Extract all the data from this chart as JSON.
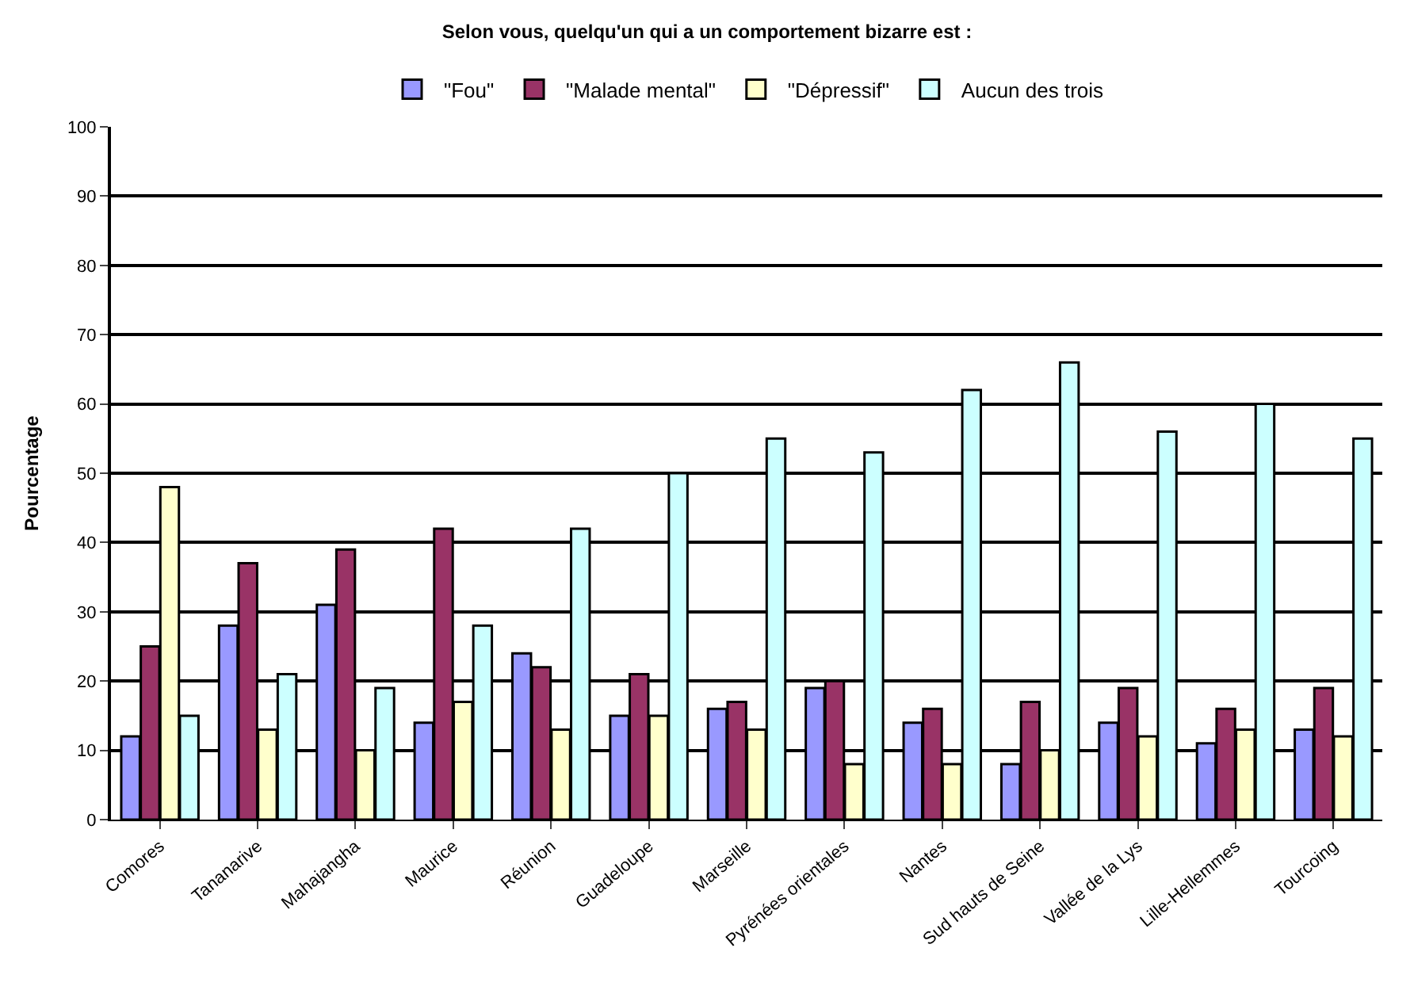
{
  "chart_data": {
    "type": "bar",
    "title": "Selon vous, quelqu'un qui a un comportement bizarre est :",
    "ylabel": "Pourcentage",
    "categories": [
      "Comores",
      "Tananarive",
      "Mahajangha",
      "Maurice",
      "Réunion",
      "Guadeloupe",
      "Marseille",
      "Pyrénées orientales",
      "Nantes",
      "Sud hauts de Seine",
      "Vallée de la Lys",
      "Lille-Hellemmes",
      "Tourcoing"
    ],
    "series": [
      {
        "name": "\"Fou\"",
        "color": "#9999ff",
        "values": [
          12,
          28,
          31,
          14,
          24,
          15,
          16,
          19,
          14,
          8,
          14,
          11,
          13
        ]
      },
      {
        "name": "\"Malade mental\"",
        "color": "#993366",
        "values": [
          25,
          37,
          39,
          42,
          22,
          21,
          17,
          20,
          16,
          17,
          19,
          16,
          19
        ]
      },
      {
        "name": "\"Dépressif\"",
        "color": "#ffffcc",
        "values": [
          48,
          13,
          10,
          17,
          13,
          15,
          13,
          8,
          8,
          10,
          12,
          13,
          12
        ]
      },
      {
        "name": "Aucun des trois",
        "color": "#ccffff",
        "values": [
          15,
          21,
          19,
          28,
          42,
          50,
          55,
          53,
          62,
          66,
          56,
          60,
          55
        ]
      }
    ],
    "ylim": [
      0,
      100
    ],
    "yticks": [
      0,
      10,
      20,
      30,
      40,
      50,
      60,
      70,
      80,
      90,
      100
    ],
    "grid": "y",
    "legend": "top"
  }
}
